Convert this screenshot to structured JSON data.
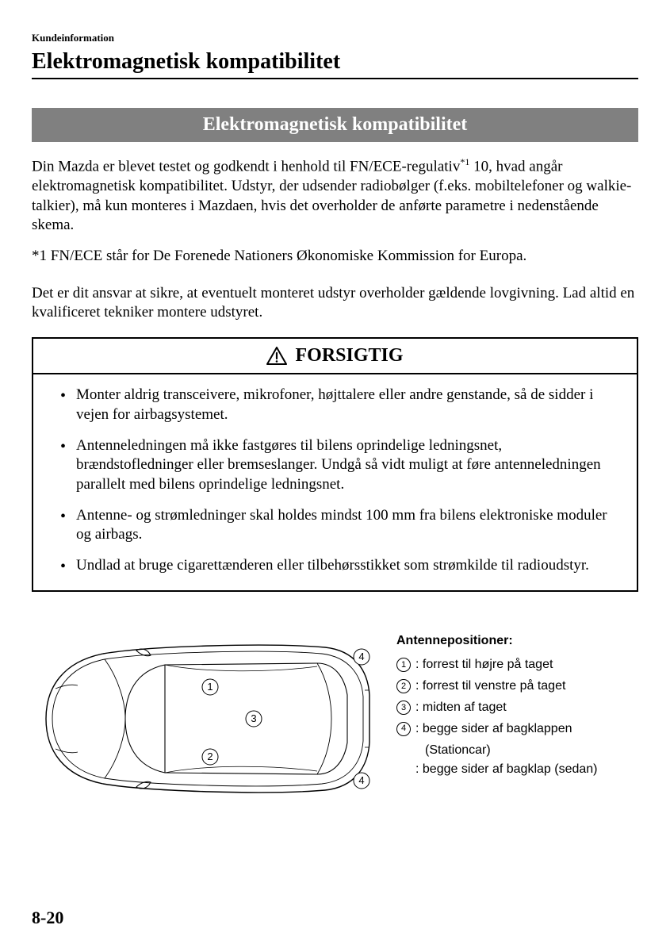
{
  "breadcrumb": "Kundeinformation",
  "page_title": "Elektromagnetisk kompatibilitet",
  "section_heading": "Elektromagnetisk kompatibilitet",
  "intro_para_html": "Din Mazda er blevet testet og godkendt i henhold til FN/ECE-regulativ<span class=\"sup\">*1</span> 10, hvad angår elektromagnetisk kompatibilitet. Udstyr, der udsender radiobølger (f.eks. mobiltelefoner og walkie-talkier), må kun monteres i Mazdaen, hvis det overholder de anførte parametre i nedenstående skema.",
  "footnote": "*1 FN/ECE står for De Forenede Nationers Økonomiske Kommission for Europa.",
  "responsibility": "Det er dit ansvar at sikre, at eventuelt monteret udstyr overholder gældende lovgivning. Lad altid en kvalificeret tekniker montere udstyret.",
  "caution": {
    "title": "FORSIGTIG",
    "items": [
      "Monter aldrig transceivere, mikrofoner, højttalere eller andre genstande, så de sidder i vejen for airbagsystemet.",
      "Antenneledningen må ikke fastgøres til bilens oprindelige ledningsnet, brændstofledninger eller bremseslanger. Undgå så vidt muligt at føre antenneledningen parallelt med bilens oprindelige ledningsnet.",
      "Antenne- og strømledninger skal holdes mindst 100 mm fra bilens elektroniske moduler og airbags.",
      "Undlad at bruge cigarettænderen eller tilbehørsstikket som strømkilde til radioudstyr."
    ]
  },
  "diagram": {
    "labels": {
      "p1": "1",
      "p2": "2",
      "p3": "3",
      "p4top": "4",
      "p4bot": "4"
    }
  },
  "legend": {
    "title": "Antennepositioner:",
    "items": [
      {
        "num": "1",
        "text": ": forrest til højre på taget"
      },
      {
        "num": "2",
        "text": ": forrest til venstre på taget"
      },
      {
        "num": "3",
        "text": ": midten af taget"
      },
      {
        "num": "4",
        "text": ": begge sider af bagklappen",
        "sub": "(Stationcar)"
      },
      {
        "num": "",
        "text": ": begge sider af bagklap (sedan)"
      }
    ]
  },
  "page_number": "8-20"
}
